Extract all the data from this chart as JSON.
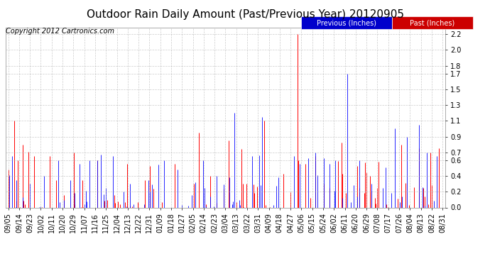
{
  "title": "Outdoor Rain Daily Amount (Past/Previous Year) 20120905",
  "copyright": "Copyright 2012 Cartronics.com",
  "legend_previous": "Previous (Inches)",
  "legend_past": "Past (Inches)",
  "legend_previous_bg": "#0000cc",
  "legend_past_bg": "#cc0000",
  "yticks": [
    0.0,
    0.2,
    0.4,
    0.6,
    0.7,
    0.9,
    1.1,
    1.3,
    1.5,
    1.7,
    1.8,
    2.0,
    2.2
  ],
  "ylim": [
    0.0,
    2.28
  ],
  "background_color": "#ffffff",
  "plot_bg_color": "#ffffff",
  "grid_color": "#aaaaaa",
  "xtick_labels": [
    "09/05",
    "09/14",
    "09/23",
    "10/02",
    "10/11",
    "10/20",
    "10/29",
    "11/07",
    "11/16",
    "11/25",
    "12/04",
    "12/13",
    "12/22",
    "12/31",
    "01/09",
    "01/18",
    "01/27",
    "02/05",
    "02/14",
    "02/23",
    "03/04",
    "03/13",
    "03/22",
    "03/31",
    "04/09",
    "04/18",
    "04/27",
    "05/06",
    "05/15",
    "05/24",
    "06/02",
    "06/11",
    "06/20",
    "06/29",
    "07/08",
    "07/17",
    "07/26",
    "08/04",
    "08/13",
    "08/22",
    "08/31"
  ],
  "n_points": 366,
  "title_fontsize": 11,
  "axis_fontsize": 7,
  "copyright_fontsize": 7,
  "legend_fontsize": 7
}
